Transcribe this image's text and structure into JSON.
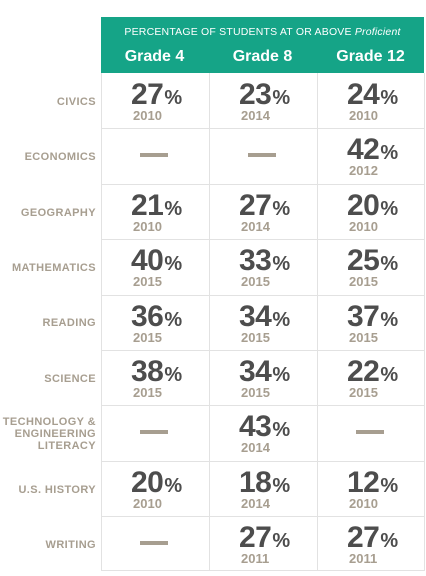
{
  "header": {
    "title_prefix": "PERCENTAGE OF STUDENTS AT OR ABOVE",
    "title_emphasis": "Proficient",
    "columns": [
      "Grade 4",
      "Grade 8",
      "Grade 12"
    ]
  },
  "rows": [
    {
      "subject": [
        "CIVICS"
      ],
      "cells": [
        {
          "pct": "27",
          "year": "2010"
        },
        {
          "pct": "23",
          "year": "2014"
        },
        {
          "pct": "24",
          "year": "2010"
        }
      ]
    },
    {
      "subject": [
        "ECONOMICS"
      ],
      "cells": [
        null,
        null,
        {
          "pct": "42",
          "year": "2012"
        }
      ]
    },
    {
      "subject": [
        "GEOGRAPHY"
      ],
      "cells": [
        {
          "pct": "21",
          "year": "2010"
        },
        {
          "pct": "27",
          "year": "2014"
        },
        {
          "pct": "20",
          "year": "2010"
        }
      ]
    },
    {
      "subject": [
        "MATHEMATICS"
      ],
      "cells": [
        {
          "pct": "40",
          "year": "2015"
        },
        {
          "pct": "33",
          "year": "2015"
        },
        {
          "pct": "25",
          "year": "2015"
        }
      ]
    },
    {
      "subject": [
        "READING"
      ],
      "cells": [
        {
          "pct": "36",
          "year": "2015"
        },
        {
          "pct": "34",
          "year": "2015"
        },
        {
          "pct": "37",
          "year": "2015"
        }
      ]
    },
    {
      "subject": [
        "SCIENCE"
      ],
      "cells": [
        {
          "pct": "38",
          "year": "2015"
        },
        {
          "pct": "34",
          "year": "2015"
        },
        {
          "pct": "22",
          "year": "2015"
        }
      ]
    },
    {
      "subject": [
        "TECHNOLOGY &",
        "ENGINEERING",
        "LITERACY"
      ],
      "cells": [
        null,
        {
          "pct": "43",
          "year": "2014"
        },
        null
      ]
    },
    {
      "subject": [
        "U.S. HISTORY"
      ],
      "cells": [
        {
          "pct": "20",
          "year": "2010"
        },
        {
          "pct": "18",
          "year": "2014"
        },
        {
          "pct": "12",
          "year": "2010"
        }
      ]
    },
    {
      "subject": [
        "WRITING"
      ],
      "cells": [
        null,
        {
          "pct": "27",
          "year": "2011"
        },
        {
          "pct": "27",
          "year": "2011"
        }
      ]
    }
  ],
  "percent_symbol": "%"
}
